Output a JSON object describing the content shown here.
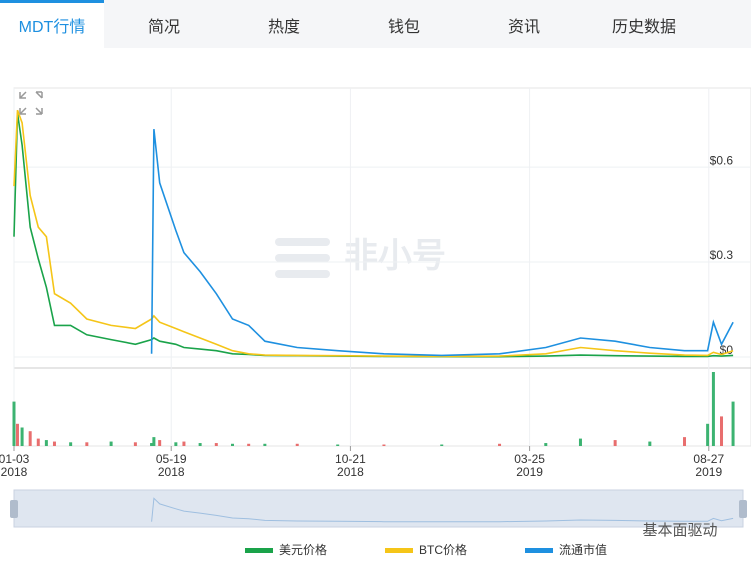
{
  "tabs": [
    "MDT行情",
    "简况",
    "热度",
    "钱包",
    "资讯",
    "历史数据"
  ],
  "watermarks": [
    "非小号",
    "基本面驱动"
  ],
  "chart_data": [
    {
      "type": "line",
      "x": [
        "2018-01-03",
        "2018-01-06",
        "2018-01-10",
        "2018-01-17",
        "2018-01-24",
        "2018-01-31",
        "2018-02-07",
        "2018-02-21",
        "2018-03-07",
        "2018-03-28",
        "2018-04-18",
        "2018-05-02",
        "2018-05-04",
        "2018-05-09",
        "2018-05-23",
        "2018-05-30",
        "2018-06-13",
        "2018-06-27",
        "2018-07-11",
        "2018-07-25",
        "2018-08-08",
        "2018-09-05",
        "2018-10-10",
        "2018-11-19",
        "2019-01-08",
        "2019-02-27",
        "2019-04-08",
        "2019-05-08",
        "2019-06-07",
        "2019-07-07",
        "2019-08-06",
        "2019-08-26",
        "2019-08-31",
        "2019-09-07",
        "2019-09-17"
      ],
      "series": [
        {
          "name": "美元价格",
          "color": "#1aa34a",
          "values": [
            0.38,
            0.77,
            0.67,
            0.41,
            0.31,
            0.22,
            0.1,
            0.1,
            0.07,
            0.055,
            0.04,
            0.055,
            0.06,
            0.05,
            0.04,
            0.03,
            0.025,
            0.02,
            0.01,
            0.008,
            0.005,
            0.004,
            0.003,
            0.002,
            0.001,
            0.001,
            0.003,
            0.006,
            0.004,
            0.003,
            0.002,
            0.002,
            0.004,
            0.003,
            0.005
          ]
        },
        {
          "name": "BTC价格",
          "color": "#f5c518",
          "values": [
            0.54,
            0.78,
            0.74,
            0.51,
            0.41,
            0.38,
            0.2,
            0.17,
            0.12,
            0.1,
            0.09,
            0.12,
            0.13,
            0.11,
            0.09,
            0.08,
            0.06,
            0.04,
            0.02,
            0.01,
            0.006,
            0.005,
            0.004,
            0.003,
            0.002,
            0.003,
            0.01,
            0.03,
            0.02,
            0.012,
            0.006,
            0.005,
            0.015,
            0.008,
            0.02
          ]
        },
        {
          "name": "流通市值",
          "color": "#1e90e0",
          "values": [
            null,
            null,
            null,
            null,
            null,
            null,
            null,
            null,
            null,
            null,
            null,
            0.01,
            0.72,
            0.55,
            0.4,
            0.33,
            0.27,
            0.2,
            0.12,
            0.1,
            0.05,
            0.03,
            0.02,
            0.01,
            0.005,
            0.01,
            0.03,
            0.06,
            0.05,
            0.03,
            0.02,
            0.02,
            0.11,
            0.04,
            0.11
          ]
        }
      ],
      "xlim": [
        "2018-01-03",
        "2019-09-23"
      ],
      "xticks": [
        {
          "value": "2018-01-03",
          "label": [
            "01-03",
            "2018"
          ]
        },
        {
          "value": "2018-05-19",
          "label": [
            "05-19",
            "2018"
          ]
        },
        {
          "value": "2018-10-21",
          "label": [
            "10-21",
            "2018"
          ]
        },
        {
          "value": "2019-03-25",
          "label": [
            "03-25",
            "2019"
          ]
        },
        {
          "value": "2019-08-27",
          "label": [
            "08-27",
            "2019"
          ]
        }
      ],
      "ylim": [
        0,
        0.85
      ],
      "yticks": [
        {
          "value": 0,
          "label": "$0"
        },
        {
          "value": 0.3,
          "label": "$0.3"
        },
        {
          "value": 0.6,
          "label": "$0.6"
        }
      ],
      "grid": true
    },
    {
      "type": "bar",
      "x": [
        "2018-01-03",
        "2018-01-06",
        "2018-01-10",
        "2018-01-17",
        "2018-01-24",
        "2018-01-31",
        "2018-02-07",
        "2018-02-21",
        "2018-03-07",
        "2018-03-28",
        "2018-04-18",
        "2018-05-02",
        "2018-05-04",
        "2018-05-09",
        "2018-05-23",
        "2018-05-30",
        "2018-06-13",
        "2018-06-27",
        "2018-07-11",
        "2018-07-25",
        "2018-08-08",
        "2018-09-05",
        "2018-10-10",
        "2018-11-19",
        "2019-01-08",
        "2019-02-27",
        "2019-04-08",
        "2019-05-08",
        "2019-06-07",
        "2019-07-07",
        "2019-08-06",
        "2019-08-26",
        "2019-08-31",
        "2019-09-07",
        "2019-09-17"
      ],
      "values": [
        60,
        30,
        25,
        20,
        10,
        8,
        6,
        5,
        5,
        6,
        5,
        4,
        12,
        8,
        5,
        6,
        4,
        4,
        3,
        3,
        3,
        3,
        2,
        2,
        2,
        3,
        4,
        10,
        8,
        6,
        12,
        30,
        100,
        40,
        60
      ],
      "colors": [
        "#3cb371",
        "#e86e6e",
        "#3cb371",
        "#e86e6e",
        "#e86e6e",
        "#3cb371",
        "#e86e6e",
        "#3cb371",
        "#e86e6e",
        "#3cb371",
        "#e86e6e",
        "#3cb371",
        "#3cb371",
        "#e86e6e",
        "#3cb371",
        "#e86e6e",
        "#3cb371",
        "#e86e6e",
        "#3cb371",
        "#e86e6e",
        "#3cb371",
        "#e86e6e",
        "#3cb371",
        "#e86e6e",
        "#3cb371",
        "#e86e6e",
        "#3cb371",
        "#3cb371",
        "#e86e6e",
        "#3cb371",
        "#e86e6e",
        "#3cb371",
        "#3cb371",
        "#e86e6e",
        "#3cb371"
      ],
      "xlim": [
        "2018-01-03",
        "2019-09-23"
      ],
      "ylim": [
        0,
        100
      ]
    }
  ]
}
